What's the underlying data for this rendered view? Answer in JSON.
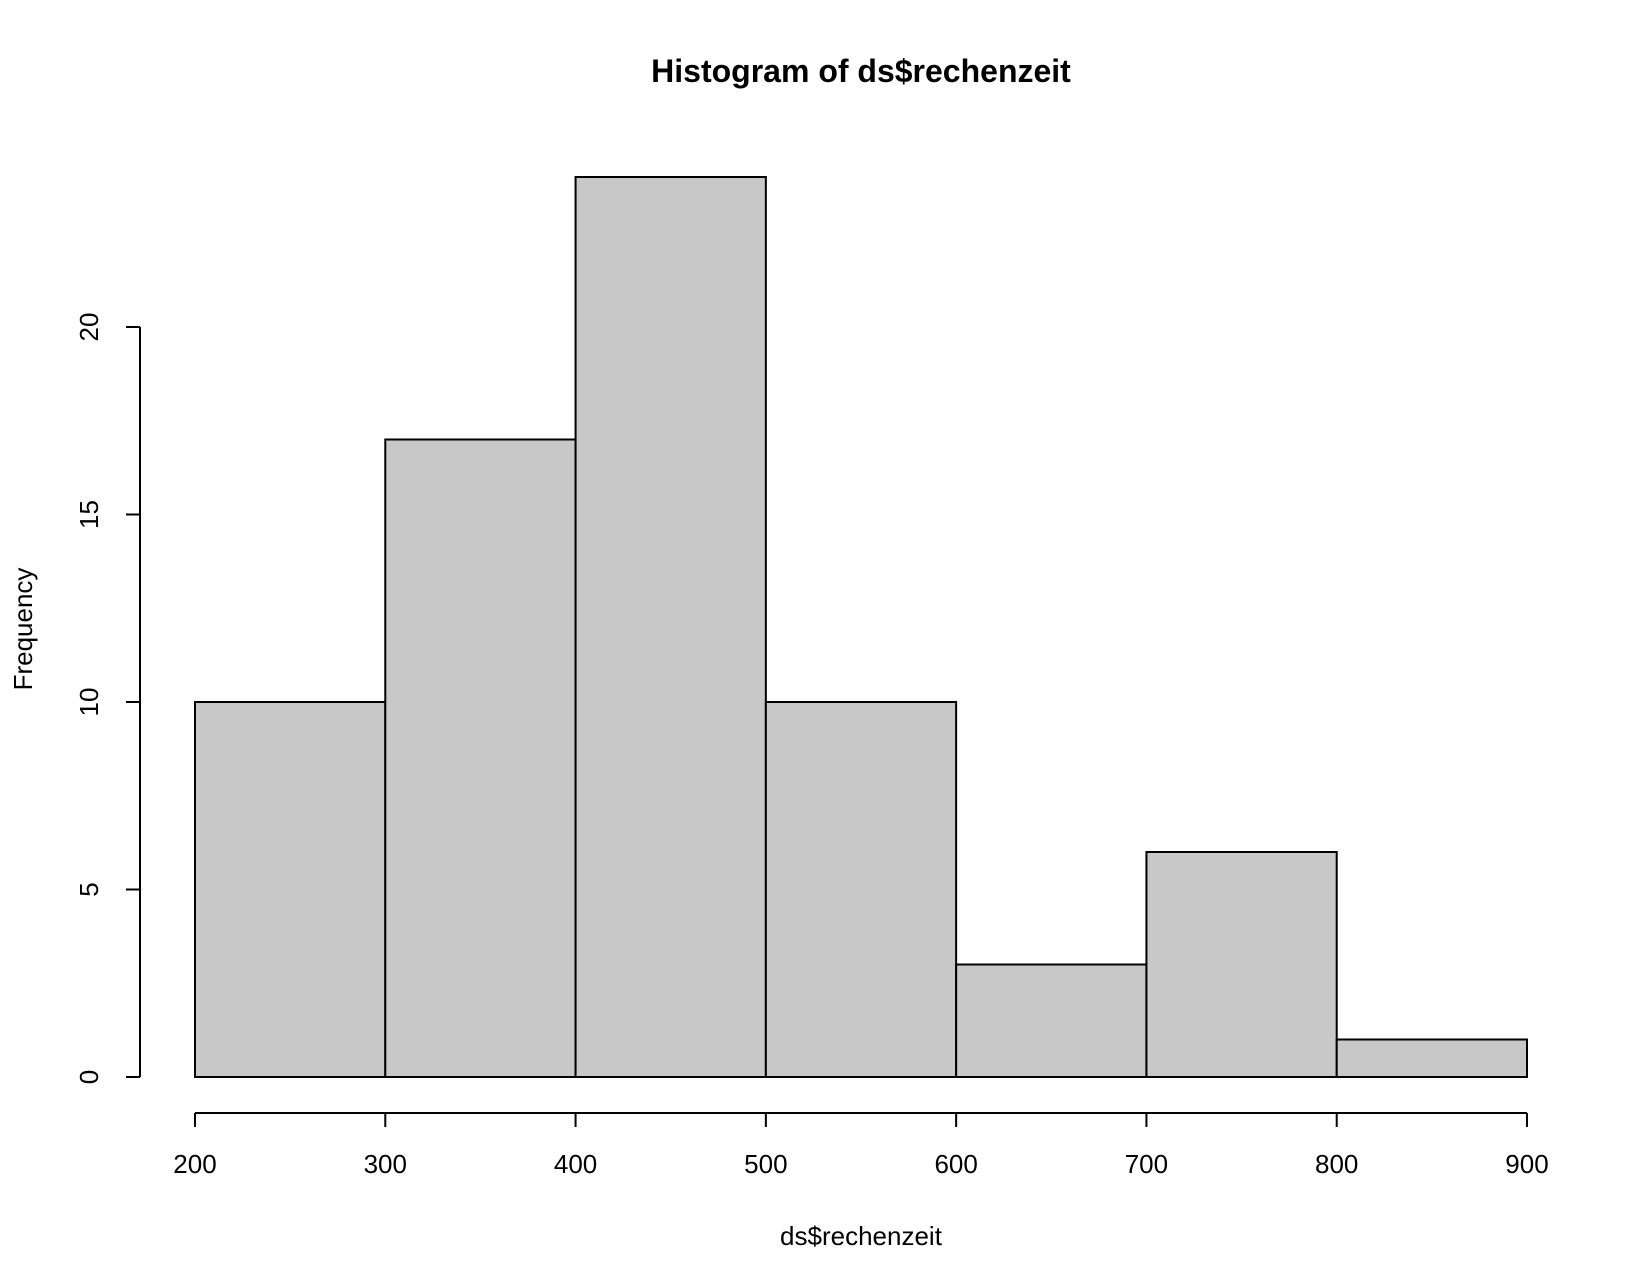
{
  "chart_data": {
    "type": "bar",
    "title": "Histogram of ds$rechenzeit",
    "xlabel": "ds$rechenzeit",
    "ylabel": "Frequency",
    "bins": [
      {
        "from": 200,
        "to": 300,
        "count": 10
      },
      {
        "from": 300,
        "to": 400,
        "count": 17
      },
      {
        "from": 400,
        "to": 500,
        "count": 24
      },
      {
        "from": 500,
        "to": 600,
        "count": 10
      },
      {
        "from": 600,
        "to": 700,
        "count": 3
      },
      {
        "from": 700,
        "to": 800,
        "count": 6
      },
      {
        "from": 800,
        "to": 900,
        "count": 1
      }
    ],
    "xlim": [
      200,
      900
    ],
    "ylim": [
      0,
      24
    ],
    "x_ticks": [
      200,
      300,
      400,
      500,
      600,
      700,
      800,
      900
    ],
    "y_ticks": [
      0,
      5,
      10,
      15,
      20
    ],
    "grid": false,
    "legend": "none",
    "colors": {
      "bar_fill": "#c8c8c8",
      "bar_border": "#000000"
    }
  }
}
